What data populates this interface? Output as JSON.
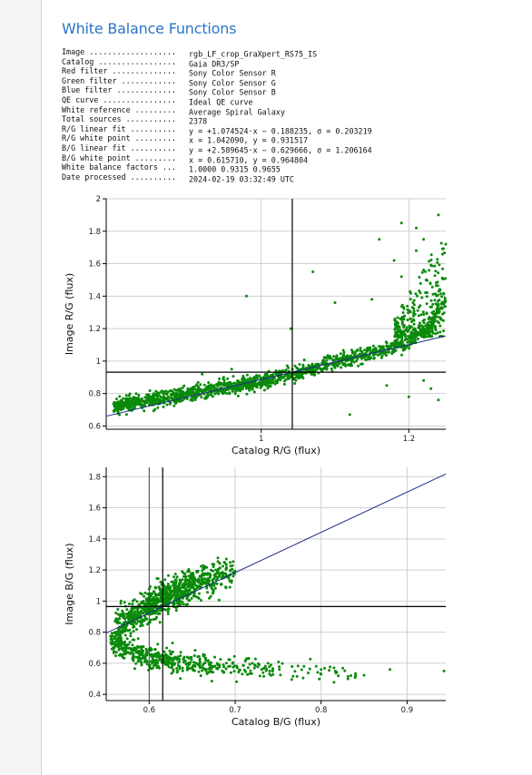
{
  "page": {
    "title": "White Balance Functions"
  },
  "info": [
    {
      "key": "Image ...................",
      "value": "rgb_LF_crop_GraXpert_RS75_IS"
    },
    {
      "key": "Catalog .................",
      "value": "Gaia DR3/SP"
    },
    {
      "key": "Red filter ..............",
      "value": "Sony Color Sensor R"
    },
    {
      "key": "Green filter ............",
      "value": "Sony Color Sensor G"
    },
    {
      "key": "Blue filter .............",
      "value": "Sony Color Sensor B"
    },
    {
      "key": "QE curve ................",
      "value": "Ideal QE curve"
    },
    {
      "key": "White reference .........",
      "value": "Average Spiral Galaxy"
    },
    {
      "key": "Total sources ...........",
      "value": "2378"
    },
    {
      "key": "R/G linear fit ..........",
      "value": "y = +1.074524·x − 0.188235, σ = 0.203219"
    },
    {
      "key": "R/G white point .........",
      "value": "x = 1.042090, y = 0.931517"
    },
    {
      "key": "B/G linear fit ..........",
      "value": "y = +2.589645·x − 0.629666, σ = 1.206164"
    },
    {
      "key": "B/G white point .........",
      "value": "x = 0.615710, y = 0.964804"
    },
    {
      "key": "White balance factors ...",
      "value": "1.0000 0.9315 0.9655"
    },
    {
      "key": "Date processed ..........",
      "value": "2024-02-19 03:32:49 UTC"
    }
  ],
  "colors": {
    "title": "#2a74c9",
    "points": "#0a8a0a",
    "fit_line": "#1f2e8c",
    "crosshair": "#000000",
    "grid": "#cfcfcf"
  },
  "chart_data": [
    {
      "type": "scatter",
      "title": "",
      "xlabel": "Catalog R/G (flux)",
      "ylabel": "Image R/G (flux)",
      "xlim": [
        0.79,
        1.25
      ],
      "ylim": [
        0.58,
        2.0
      ],
      "xticks": [
        1,
        1.2
      ],
      "yticks": [
        0.6,
        0.8,
        1,
        1.2,
        1.4,
        1.6,
        1.8,
        2
      ],
      "grid": true,
      "fit": {
        "slope": 1.074524,
        "intercept": -0.188235
      },
      "white_point": {
        "x": 1.04209,
        "y": 0.931517
      },
      "main_band": [
        [
          0.8,
          0.72,
          0.8
        ],
        [
          0.9,
          0.8,
          0.6
        ],
        [
          1.0,
          0.87,
          0.6
        ],
        [
          1.05,
          0.93,
          0.5
        ],
        [
          1.1,
          1.0,
          0.55
        ],
        [
          1.15,
          1.05,
          0.6
        ],
        [
          1.2,
          1.12,
          0.55
        ],
        [
          1.23,
          1.22,
          0.5
        ],
        [
          1.25,
          1.38,
          0.4
        ]
      ],
      "outliers": [
        [
          0.98,
          1.4
        ],
        [
          1.04,
          1.2
        ],
        [
          1.07,
          1.55
        ],
        [
          1.16,
          1.75
        ],
        [
          1.18,
          1.62
        ],
        [
          1.19,
          1.85
        ],
        [
          1.21,
          1.68
        ],
        [
          1.22,
          1.75
        ],
        [
          1.23,
          1.59
        ],
        [
          1.21,
          1.82
        ],
        [
          1.24,
          1.9
        ],
        [
          1.25,
          1.72
        ],
        [
          1.15,
          1.38
        ],
        [
          1.19,
          1.52
        ],
        [
          1.24,
          1.35
        ],
        [
          1.17,
          0.85
        ],
        [
          1.12,
          0.67
        ],
        [
          1.23,
          0.83
        ],
        [
          1.22,
          0.88
        ],
        [
          0.96,
          0.95
        ],
        [
          0.92,
          0.92
        ],
        [
          1.1,
          1.36
        ],
        [
          1.2,
          0.78
        ],
        [
          1.24,
          0.76
        ]
      ]
    },
    {
      "type": "scatter",
      "title": "",
      "xlabel": "Catalog B/G (flux)",
      "ylabel": "Image B/G (flux)",
      "xlim": [
        0.55,
        0.945
      ],
      "ylim": [
        0.36,
        1.86
      ],
      "xticks": [
        0.6,
        0.7,
        0.8,
        0.9
      ],
      "yticks": [
        0.4,
        0.6,
        0.8,
        1,
        1.2,
        1.4,
        1.6,
        1.8
      ],
      "grid": true,
      "fit": {
        "slope": 2.589645,
        "intercept": -0.629666
      },
      "white_point": {
        "x": 0.61571,
        "y": 0.964804
      },
      "vline2": 0.6,
      "upper_band": [
        [
          0.56,
          0.82,
          0.25
        ],
        [
          0.58,
          0.9,
          0.6
        ],
        [
          0.6,
          0.97,
          0.7
        ],
        [
          0.62,
          1.03,
          0.7
        ],
        [
          0.64,
          1.08,
          0.6
        ],
        [
          0.66,
          1.12,
          0.45
        ],
        [
          0.68,
          1.16,
          0.3
        ],
        [
          0.7,
          1.19,
          0.15
        ]
      ],
      "lower_band": [
        [
          0.555,
          0.75,
          0.4
        ],
        [
          0.57,
          0.7,
          0.5
        ],
        [
          0.59,
          0.66,
          0.5
        ],
        [
          0.61,
          0.63,
          0.45
        ],
        [
          0.63,
          0.61,
          0.35
        ],
        [
          0.66,
          0.59,
          0.25
        ],
        [
          0.7,
          0.57,
          0.15
        ],
        [
          0.75,
          0.56,
          0.1
        ],
        [
          0.8,
          0.55,
          0.06
        ],
        [
          0.85,
          0.54,
          0.03
        ]
      ],
      "outliers": [
        [
          0.815,
          0.57
        ],
        [
          0.82,
          0.52
        ],
        [
          0.78,
          0.58
        ],
        [
          0.74,
          0.55
        ],
        [
          0.8,
          0.56
        ],
        [
          0.84,
          0.52
        ],
        [
          0.88,
          0.56
        ],
        [
          0.943,
          0.55
        ],
        [
          0.72,
          0.6
        ],
        [
          0.66,
          0.52
        ]
      ]
    }
  ]
}
